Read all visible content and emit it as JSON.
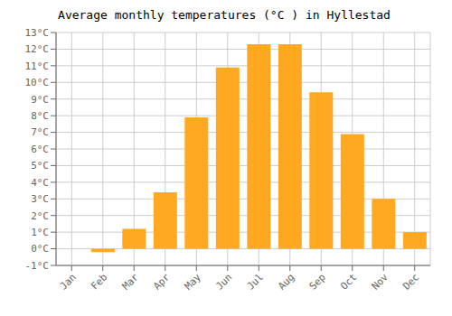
{
  "chart_data": {
    "type": "bar",
    "title": "Average monthly temperatures (°C ) in Hyllestad",
    "categories": [
      "Jan",
      "Feb",
      "Mar",
      "Apr",
      "May",
      "Jun",
      "Jul",
      "Aug",
      "Sep",
      "Oct",
      "Nov",
      "Dec"
    ],
    "values": [
      0.0,
      -0.2,
      1.2,
      3.4,
      7.9,
      10.9,
      12.3,
      12.3,
      9.4,
      6.9,
      3.0,
      1.0
    ],
    "color": "#FFA820",
    "ylim": [
      -1,
      13
    ],
    "yticks": [
      {
        "value": -1,
        "label": "-1°C"
      },
      {
        "value": 0,
        "label": "0°C"
      },
      {
        "value": 1,
        "label": "1°C"
      },
      {
        "value": 2,
        "label": "2°C"
      },
      {
        "value": 3,
        "label": "3°C"
      },
      {
        "value": 4,
        "label": "4°C"
      },
      {
        "value": 5,
        "label": "5°C"
      },
      {
        "value": 6,
        "label": "6°C"
      },
      {
        "value": 7,
        "label": "7°C"
      },
      {
        "value": 8,
        "label": "8°C"
      },
      {
        "value": 9,
        "label": "9°C"
      },
      {
        "value": 10,
        "label": "10°C"
      },
      {
        "value": 11,
        "label": "11°C"
      },
      {
        "value": 12,
        "label": "12°C"
      },
      {
        "value": 13,
        "label": "13°C"
      }
    ],
    "grid": true
  }
}
